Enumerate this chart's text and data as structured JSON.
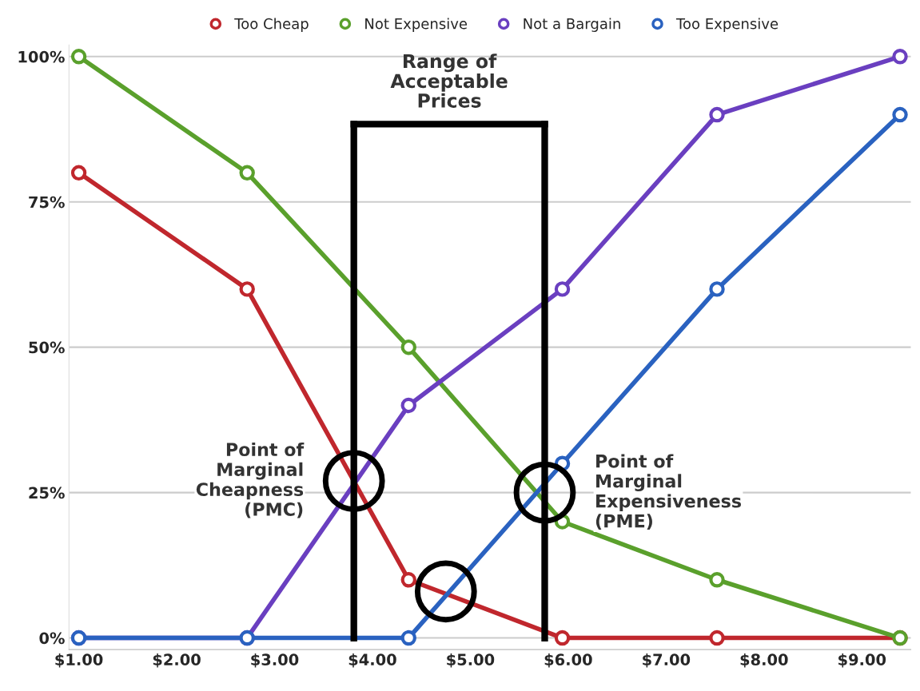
{
  "chart_data": {
    "type": "line",
    "x": [
      1.0,
      2.72,
      4.37,
      5.94,
      7.52,
      9.39
    ],
    "series": [
      {
        "name": "Too Cheap",
        "color": "#c0272d",
        "values": [
          80,
          60,
          10,
          0,
          0,
          0
        ]
      },
      {
        "name": "Not Expensive",
        "color": "#5aa02c",
        "values": [
          100,
          80,
          50,
          20,
          10,
          0
        ]
      },
      {
        "name": "Not a Bargain",
        "color": "#6a3fc0",
        "values": [
          0,
          0,
          40,
          60,
          90,
          100
        ]
      },
      {
        "name": "Too Expensive",
        "color": "#2a62c0",
        "values": [
          0,
          0,
          0,
          30,
          60,
          90
        ]
      },
      {
        "type": "scatter",
        "color": "#000000",
        "x": [
          3.81,
          4.75,
          5.76
        ],
        "values": [
          27,
          8,
          25
        ]
      }
    ],
    "xlim": [
      0.9,
      9.5
    ],
    "xticks": [
      {
        "value": 1,
        "label": "$1.00"
      },
      {
        "value": 2,
        "label": "$2.00"
      },
      {
        "value": 3,
        "label": "$3.00"
      },
      {
        "value": 4,
        "label": "$4.00"
      },
      {
        "value": 5,
        "label": "$5.00"
      },
      {
        "value": 6,
        "label": "$6.00"
      },
      {
        "value": 7,
        "label": "$7.00"
      },
      {
        "value": 8,
        "label": "$8.00"
      },
      {
        "value": 9,
        "label": "$9.00"
      }
    ],
    "ylim": [
      -2,
      102
    ],
    "yticks": [
      {
        "value": 0,
        "label": "0%"
      },
      {
        "value": 25,
        "label": "25%"
      },
      {
        "value": 50,
        "label": "50%"
      },
      {
        "value": 75,
        "label": "75%"
      },
      {
        "value": 100,
        "label": "100%"
      }
    ],
    "ref_lines": [
      {
        "axis": "x",
        "value": 3.81,
        "color": "#000000"
      },
      {
        "axis": "x",
        "value": 5.76,
        "color": "#000000"
      }
    ],
    "annotations": [
      "Range of\nAcceptable\nPrices",
      {
        "text": "Point of\nMarginal\nCheapness\n(PMC)",
        "x": 3.81,
        "y": 27
      },
      {
        "text": "Point of\nMarginal\nExpensiveness\n(PME)",
        "x": 5.76,
        "y": 25
      }
    ],
    "grid": "y",
    "legend": "top",
    "marker": "circle",
    "line_style": "solid"
  }
}
